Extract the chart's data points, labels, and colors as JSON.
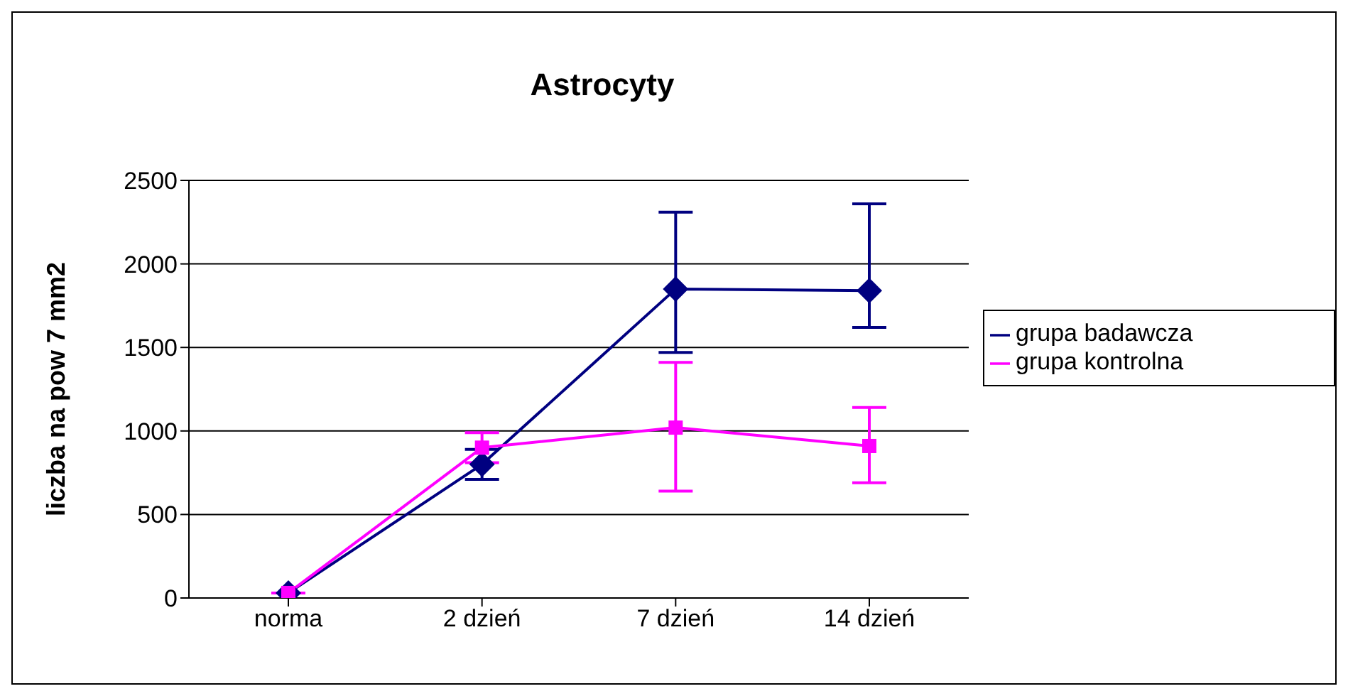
{
  "chart_data": {
    "type": "line",
    "title": "Astrocyty",
    "ylabel": "liczba na pow 7 mm2",
    "categories": [
      "norma",
      "2 dzień",
      "7 dzień",
      "14 dzień"
    ],
    "series": [
      {
        "name": "grupa badawcza",
        "color": "#000080",
        "marker": "diamond",
        "values": [
          30,
          800,
          1850,
          1840
        ],
        "errors": [
          null,
          90,
          [
            1470,
            2310
          ],
          [
            1620,
            2360
          ]
        ]
      },
      {
        "name": "grupa kontrolna",
        "color": "#ff00ff",
        "marker": "square",
        "values": [
          30,
          900,
          1020,
          910
        ],
        "errors": [
          null,
          90,
          [
            640,
            1410
          ],
          [
            690,
            1140
          ]
        ]
      }
    ],
    "ylim": [
      0,
      2500
    ],
    "yticks": [
      0,
      500,
      1000,
      1500,
      2000,
      2500
    ],
    "grid": "y",
    "legend": "right"
  }
}
